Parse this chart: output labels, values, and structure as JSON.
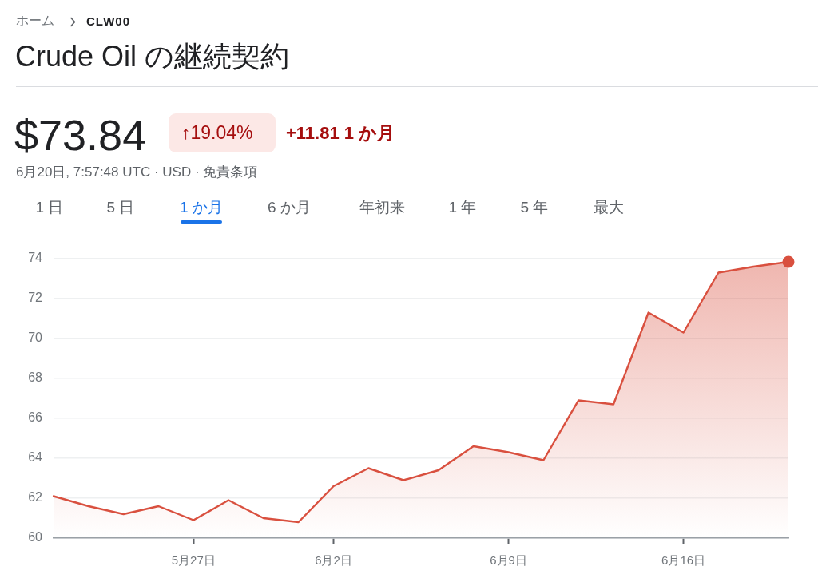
{
  "chart_data": {
    "type": "area",
    "title": "Crude Oil の継続契約",
    "annotations": [
      "ホーム",
      "CLW00",
      "$73.84",
      "↑19.04%",
      "+11.81 1 か月",
      "6月20日, 7:57:48 UTC · USD · 免責条項",
      "1 日",
      "5 日",
      "1 か月",
      "6 か月",
      "年初来",
      "1 年",
      "5 年",
      "最大"
    ],
    "categories": [
      null,
      null,
      null,
      null,
      "5月27日",
      null,
      null,
      null,
      "6月2日",
      null,
      null,
      null,
      null,
      "6月9日",
      null,
      null,
      null,
      null,
      "6月16日",
      null,
      null,
      null
    ],
    "series": [
      {
        "color": "#d9503f",
        "values": [
          62.1,
          61.6,
          61.2,
          61.6,
          60.9,
          61.9,
          61.0,
          60.8,
          62.6,
          63.5,
          62.9,
          63.4,
          64.6,
          64.3,
          63.9,
          66.9,
          66.7,
          71.3,
          70.3,
          73.3,
          73.6,
          73.84
        ]
      },
      {
        "type": "scatter",
        "color": "#d9503f",
        "marker": "circle",
        "values": [
          null,
          null,
          null,
          null,
          null,
          null,
          null,
          null,
          null,
          null,
          null,
          null,
          null,
          null,
          null,
          null,
          null,
          null,
          null,
          null,
          null,
          73.84
        ]
      }
    ],
    "ylim": [
      60,
      74
    ],
    "yticks": [
      60,
      62,
      64,
      66,
      68,
      70,
      72,
      74
    ],
    "grid": "y",
    "marker": "none"
  }
}
